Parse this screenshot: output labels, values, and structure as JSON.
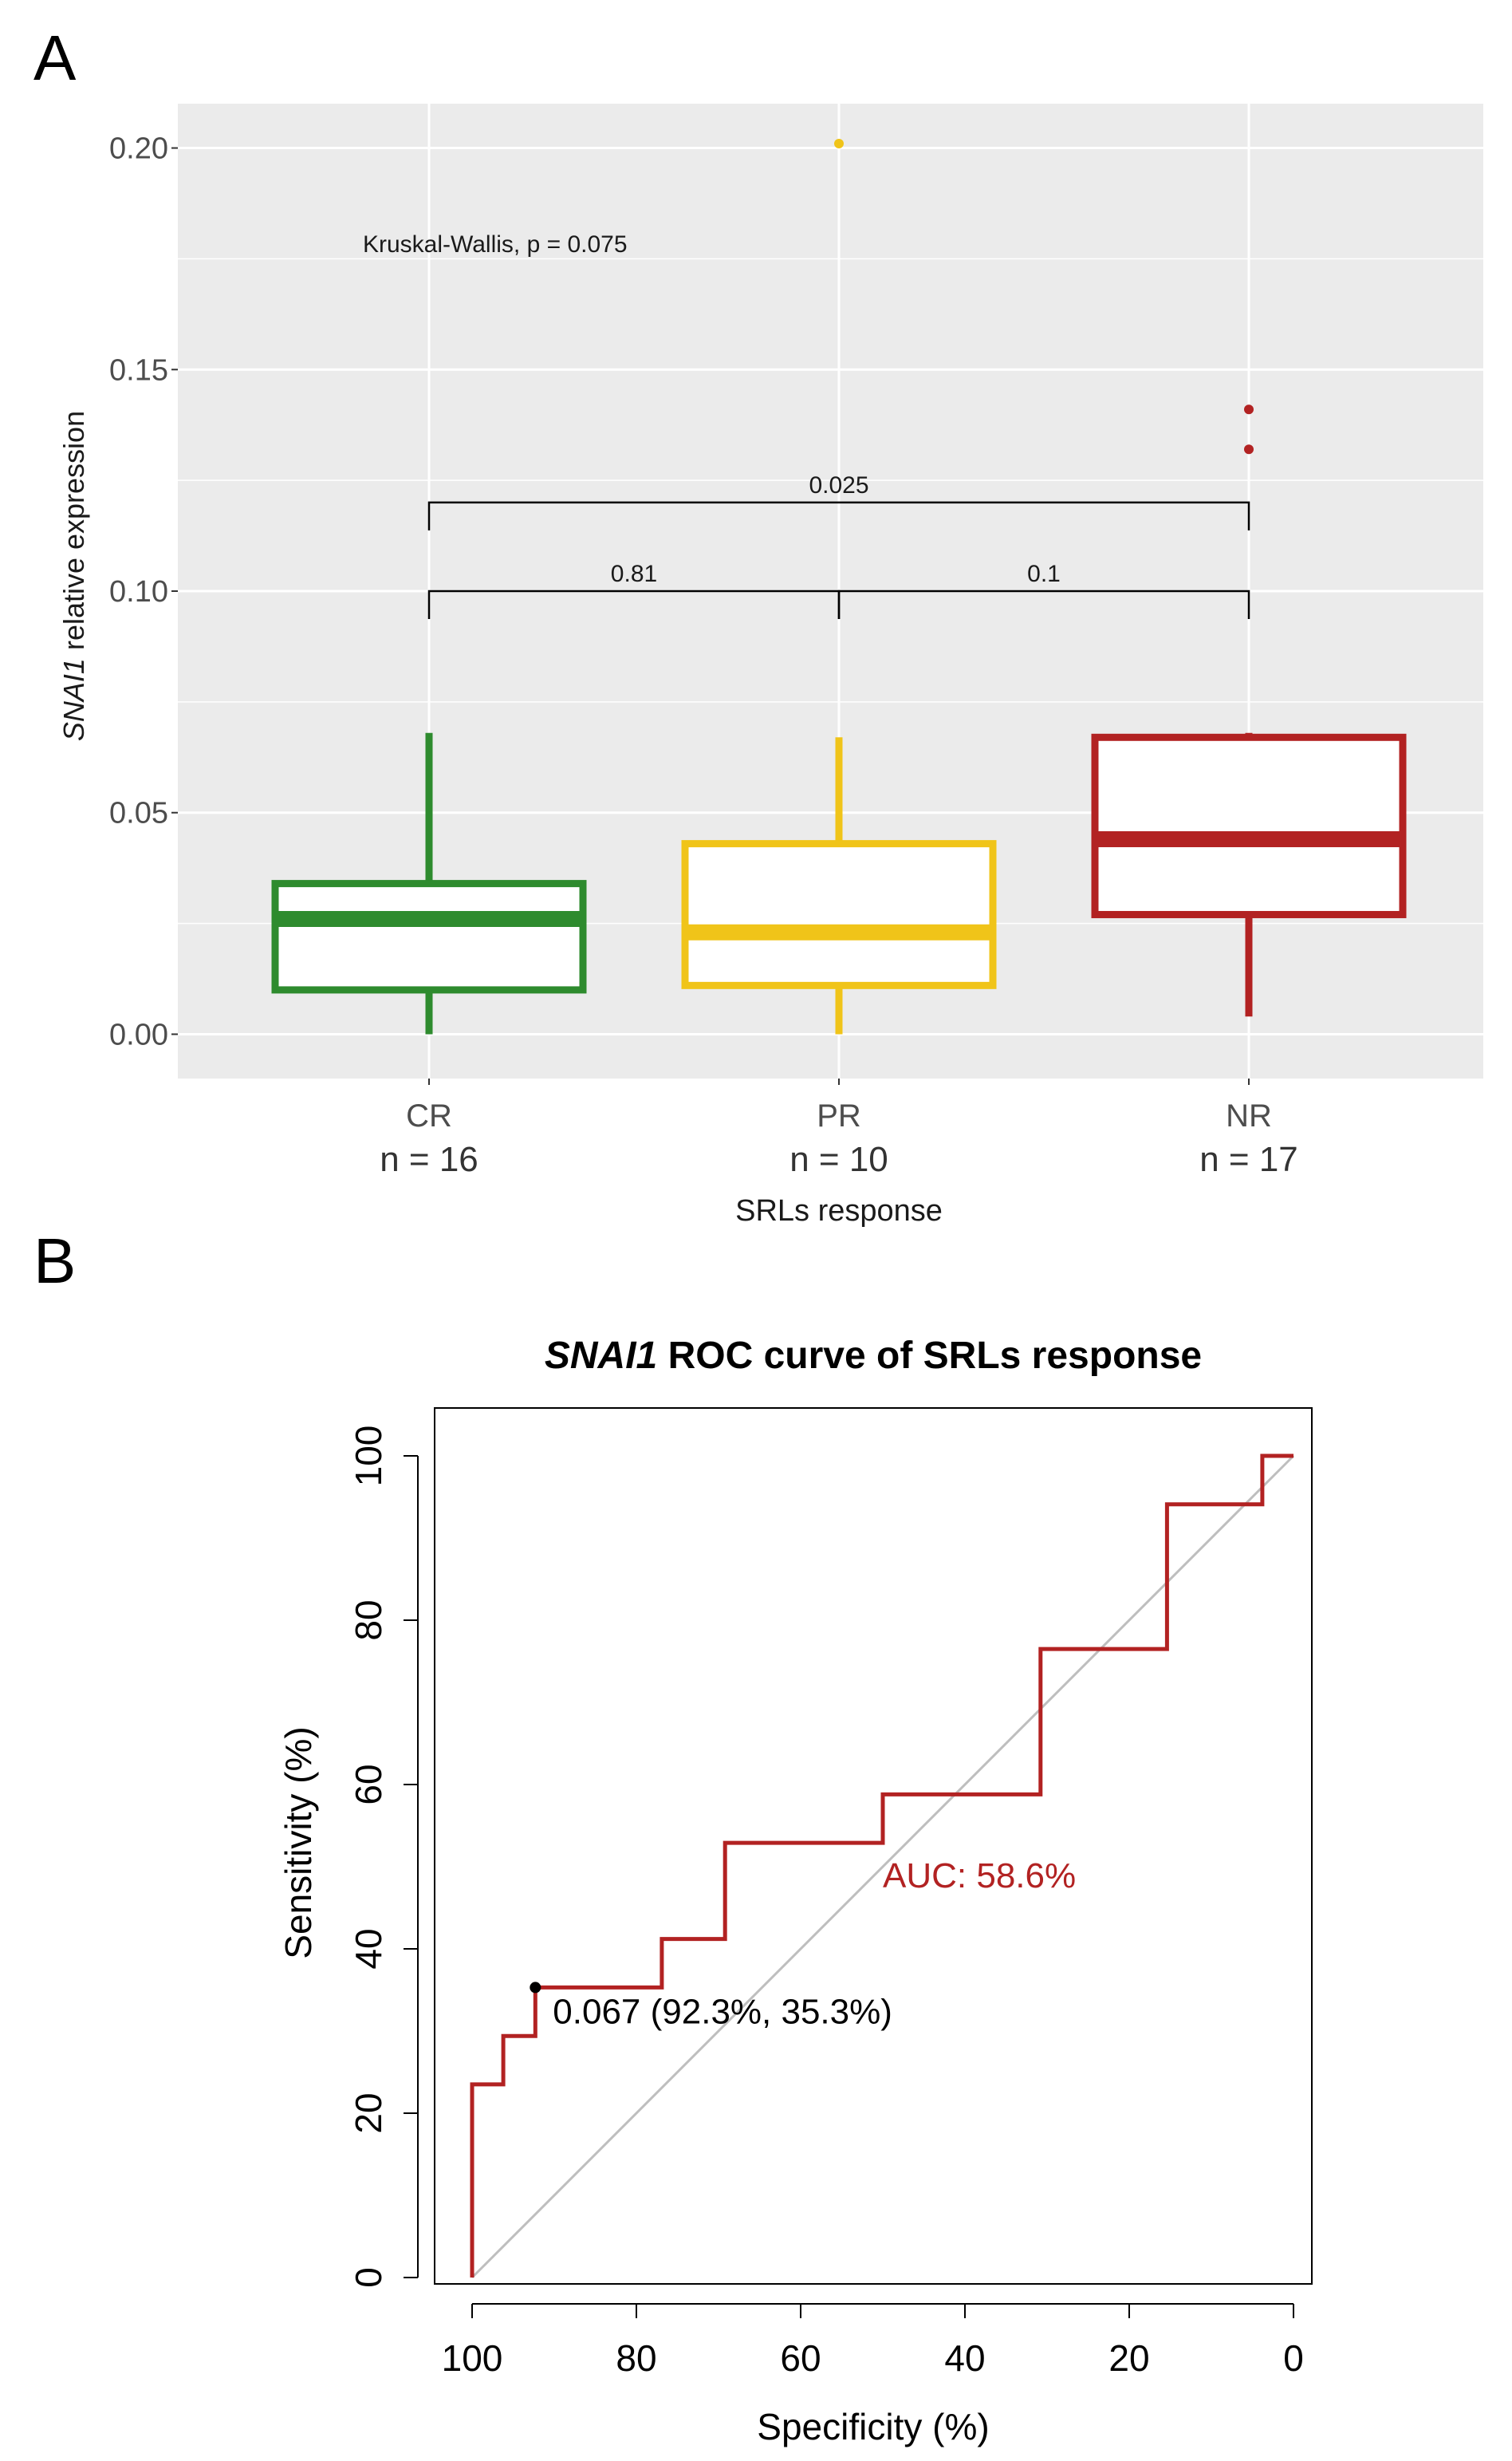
{
  "panels": {
    "a": "A",
    "b": "B"
  },
  "chart_data": [
    {
      "type": "boxplot",
      "panel": "A",
      "xlabel": "SRLs response",
      "ylabel_italic": "SNAI1",
      "ylabel_rest": " relative expression",
      "ylim": [
        -0.01,
        0.21
      ],
      "yticks": [
        0.0,
        0.05,
        0.1,
        0.15,
        0.2
      ],
      "ytick_labels": [
        "0.00",
        "0.05",
        "0.10",
        "0.15",
        "0.20"
      ],
      "grid": true,
      "background": "#ebebeb",
      "categories": [
        "CR",
        "PR",
        "NR"
      ],
      "counts": [
        "n = 16",
        "n = 10",
        "n = 17"
      ],
      "boxes": [
        {
          "name": "CR",
          "color": "#2e8b2e",
          "min": 0.0,
          "q1": 0.01,
          "median": 0.026,
          "q3": 0.034,
          "max": 0.068,
          "outliers": []
        },
        {
          "name": "PR",
          "color": "#f0c419",
          "min": 0.0,
          "q1": 0.011,
          "median": 0.023,
          "q3": 0.043,
          "max": 0.067,
          "outliers": [
            0.201
          ]
        },
        {
          "name": "NR",
          "color": "#b22222",
          "min": 0.004,
          "q1": 0.027,
          "median": 0.044,
          "q3": 0.067,
          "max": 0.068,
          "outliers": [
            0.141,
            0.132
          ]
        }
      ],
      "test_label": "Kruskal-Wallis, p = 0.075",
      "comparisons": [
        {
          "from": 0,
          "to": 2,
          "y": 0.12,
          "label": "0.025"
        },
        {
          "from": 0,
          "to": 1,
          "y": 0.1,
          "label": "0.81"
        },
        {
          "from": 1,
          "to": 2,
          "y": 0.1,
          "label": "0.1"
        }
      ]
    },
    {
      "type": "line",
      "panel": "B",
      "title_italic": "SNAI1",
      "title_rest": " ROC curve  of SRLs response",
      "xlabel": "Specificity (%)",
      "ylabel": "Sensitivity (%)",
      "xlim": [
        100,
        0
      ],
      "ylim": [
        0,
        100
      ],
      "xticks": [
        100,
        80,
        60,
        40,
        20,
        0
      ],
      "yticks": [
        0,
        20,
        40,
        60,
        80,
        100
      ],
      "curve_color": "#b22222",
      "diagonal_color": "#bebebe",
      "roc_points": [
        [
          100,
          0
        ],
        [
          100,
          23.5
        ],
        [
          96.2,
          23.5
        ],
        [
          96.2,
          29.4
        ],
        [
          92.3,
          29.4
        ],
        [
          92.3,
          35.3
        ],
        [
          76.9,
          35.3
        ],
        [
          76.9,
          41.2
        ],
        [
          69.2,
          41.2
        ],
        [
          69.2,
          52.9
        ],
        [
          50.0,
          52.9
        ],
        [
          50.0,
          58.8
        ],
        [
          30.8,
          58.8
        ],
        [
          30.8,
          76.5
        ],
        [
          15.4,
          76.5
        ],
        [
          15.4,
          94.1
        ],
        [
          3.8,
          94.1
        ],
        [
          3.8,
          100
        ],
        [
          0,
          100
        ]
      ],
      "best_threshold": {
        "specificity": 92.3,
        "sensitivity": 35.3,
        "label": "0.067 (92.3%, 35.3%)"
      },
      "auc_label": "AUC: 58.6%"
    }
  ]
}
